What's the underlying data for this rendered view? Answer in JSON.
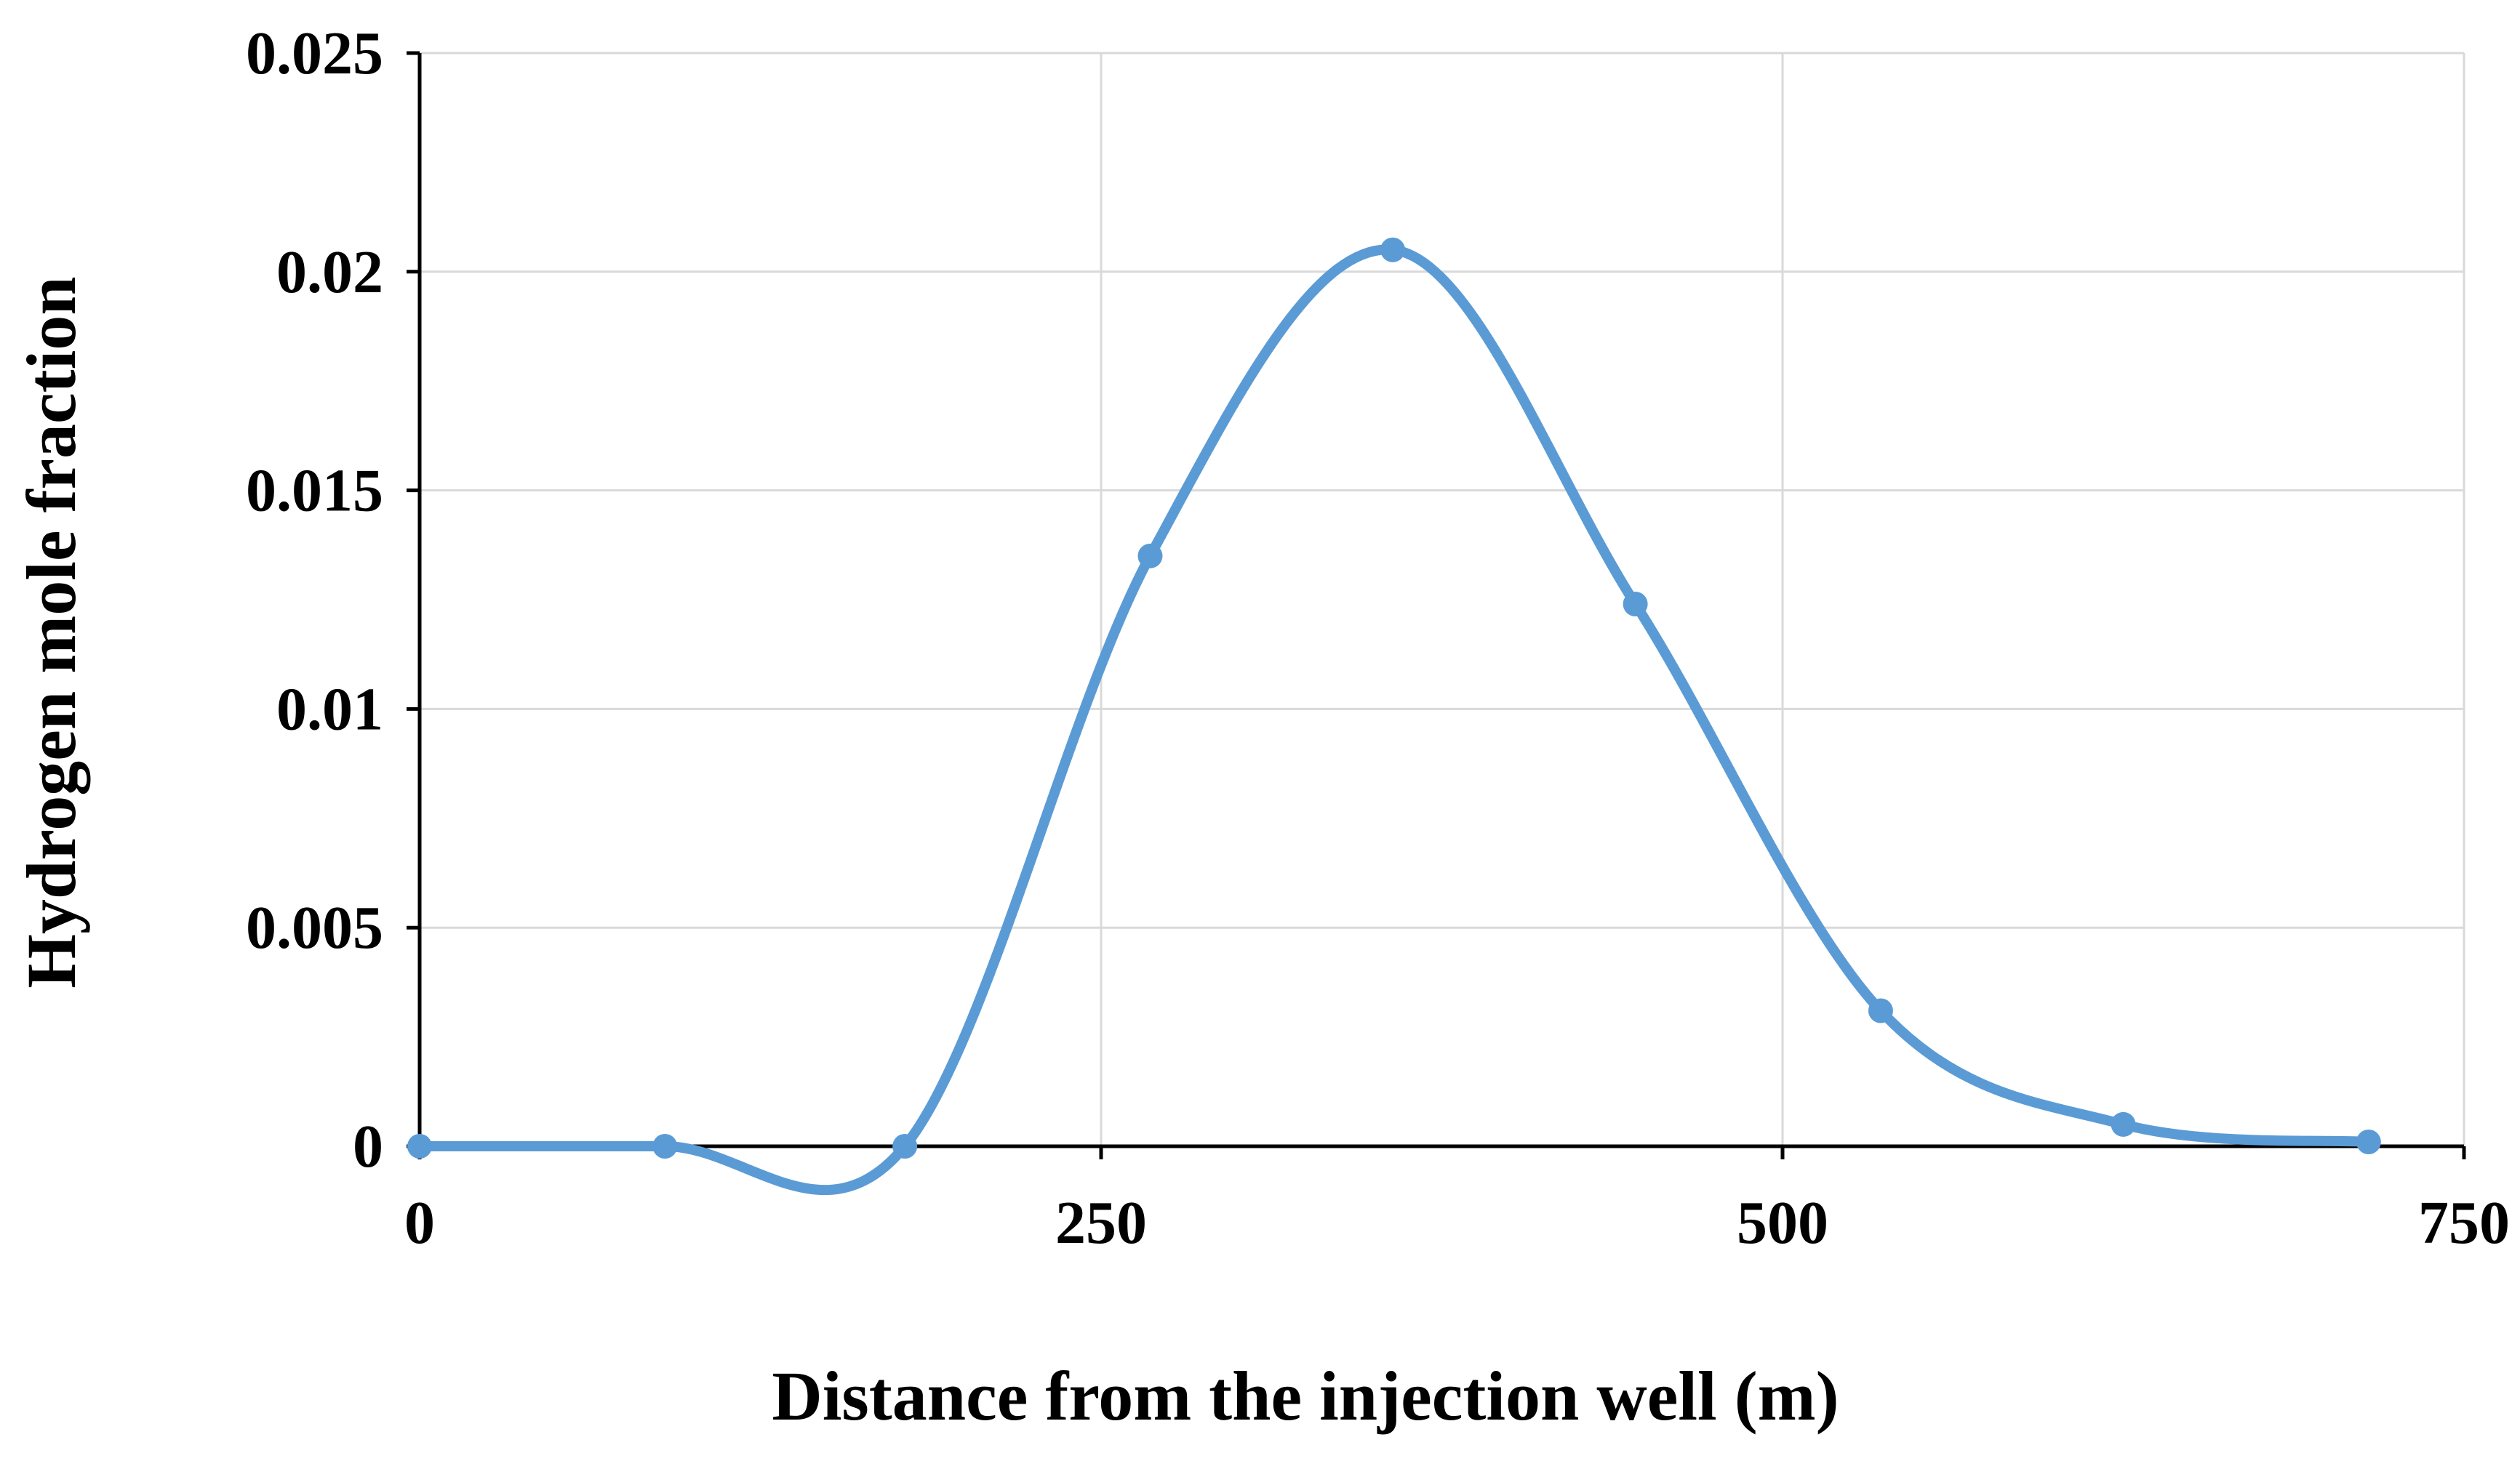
{
  "chart_data": {
    "type": "line",
    "title": "",
    "xlabel": "Distance from the injection well (m)",
    "ylabel": "Hydrogen mole fraction",
    "xlim": [
      0,
      750
    ],
    "ylim": [
      0,
      0.025
    ],
    "x_ticks": [
      0,
      250,
      500,
      750
    ],
    "x_tick_labels": [
      "0",
      "250",
      "500",
      "750"
    ],
    "y_ticks": [
      0,
      0.005,
      0.01,
      0.015,
      0.02,
      0.025
    ],
    "y_tick_labels": [
      "0",
      "0.005",
      "0.01",
      "0.015",
      "0.02",
      "0.025"
    ],
    "grid": true,
    "smooth": true,
    "series": [
      {
        "name": "Hydrogen mole fraction",
        "color": "#5b9bd5",
        "x": [
          0,
          90,
          178,
          268,
          357,
          446,
          536,
          625,
          715
        ],
        "y": [
          0.0,
          0.0,
          0.0,
          0.0135,
          0.0205,
          0.0124,
          0.0031,
          0.0005,
          0.0001
        ]
      }
    ]
  }
}
